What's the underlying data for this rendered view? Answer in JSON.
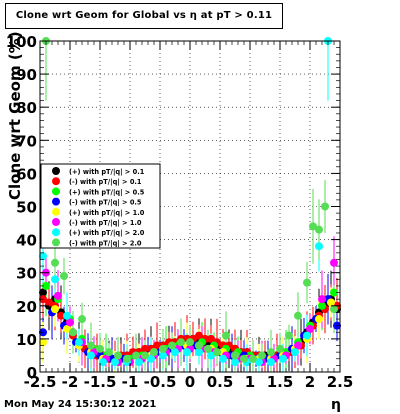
{
  "chart_data": {
    "type": "scatter",
    "title": "Clone wrt Geom for Global vs   η at pT > 0.11",
    "xlabel": "η",
    "ylabel": "Clone wrt Geom (%)",
    "xlim": [
      -2.5,
      2.5
    ],
    "ylim": [
      0,
      100
    ],
    "x_ticks": [
      "-2.5",
      "-2",
      "-1.5",
      "-1",
      "-0.5",
      "0",
      "0.5",
      "1",
      "1.5",
      "2",
      "2.5"
    ],
    "y_ticks": [
      "0",
      "10",
      "20",
      "30",
      "40",
      "50",
      "60",
      "70",
      "80",
      "90",
      "100"
    ],
    "grid": true,
    "legend_position": "left",
    "series": [
      {
        "name": "(+) with pT/|q| > 0.1",
        "color": "#000000",
        "marker": "circle",
        "x": [
          -2.45,
          -2.35,
          -2.25,
          -2.15,
          -2.05,
          -1.95,
          -1.85,
          -1.75,
          -1.65,
          -1.55,
          -1.45,
          -1.35,
          -1.25,
          -1.15,
          -1.05,
          -0.95,
          -0.85,
          -0.75,
          -0.65,
          -0.55,
          -0.45,
          -0.35,
          -0.25,
          -0.15,
          -0.05,
          0.05,
          0.15,
          0.25,
          0.35,
          0.45,
          0.55,
          0.65,
          0.75,
          0.85,
          0.95,
          1.05,
          1.15,
          1.25,
          1.35,
          1.45,
          1.55,
          1.65,
          1.75,
          1.85,
          1.95,
          2.05,
          2.15,
          2.25,
          2.35,
          2.45
        ],
        "y": [
          24,
          20,
          22,
          18,
          15,
          12,
          9,
          7,
          6,
          5,
          5,
          4,
          4,
          4,
          5,
          5,
          6,
          6,
          7,
          7,
          8,
          8,
          9,
          9,
          10,
          10,
          10,
          9,
          9,
          8,
          8,
          7,
          7,
          6,
          6,
          5,
          5,
          5,
          4,
          5,
          5,
          6,
          7,
          9,
          12,
          15,
          18,
          20,
          22,
          19
        ]
      },
      {
        "name": "(-) with pT/|q| > 0.1",
        "color": "#ff0000",
        "marker": "circle",
        "x": [
          -2.45,
          -2.35,
          -2.25,
          -2.15,
          -2.05,
          -1.95,
          -1.85,
          -1.75,
          -1.65,
          -1.55,
          -1.45,
          -1.35,
          -1.25,
          -1.15,
          -1.05,
          -0.95,
          -0.85,
          -0.75,
          -0.65,
          -0.55,
          -0.45,
          -0.35,
          -0.25,
          -0.15,
          -0.05,
          0.05,
          0.15,
          0.25,
          0.35,
          0.45,
          0.55,
          0.65,
          0.75,
          0.85,
          0.95,
          1.05,
          1.15,
          1.25,
          1.35,
          1.45,
          1.55,
          1.65,
          1.75,
          1.85,
          1.95,
          2.05,
          2.15,
          2.25,
          2.35,
          2.45
        ],
        "y": [
          22,
          21,
          20,
          17,
          14,
          11,
          8,
          7,
          6,
          5,
          5,
          4,
          4,
          5,
          5,
          6,
          6,
          7,
          7,
          8,
          8,
          9,
          9,
          10,
          10,
          10,
          11,
          10,
          10,
          9,
          8,
          8,
          7,
          6,
          6,
          5,
          5,
          4,
          4,
          5,
          5,
          6,
          7,
          8,
          11,
          14,
          17,
          19,
          21,
          20
        ]
      },
      {
        "name": "(+) with pT/|q| > 0.5",
        "color": "#00ff00",
        "marker": "circle",
        "x": [
          -2.4,
          -2.2,
          -2.0,
          -1.8,
          -1.6,
          -1.4,
          -1.2,
          -1.0,
          -0.8,
          -0.6,
          -0.4,
          -0.2,
          0.0,
          0.2,
          0.4,
          0.6,
          0.8,
          1.0,
          1.2,
          1.4,
          1.6,
          1.8,
          2.0,
          2.2,
          2.4
        ],
        "y": [
          26,
          22,
          16,
          10,
          7,
          5,
          4,
          4,
          5,
          6,
          7,
          8,
          9,
          9,
          8,
          7,
          6,
          5,
          4,
          4,
          6,
          9,
          14,
          20,
          24
        ]
      },
      {
        "name": "(-) with pT/|q| > 0.5",
        "color": "#0000ff",
        "marker": "circle",
        "x": [
          -2.45,
          -2.3,
          -2.1,
          -1.9,
          -1.7,
          -1.5,
          -1.3,
          -1.1,
          -0.9,
          -0.7,
          -0.5,
          -0.3,
          -0.1,
          0.1,
          0.3,
          0.5,
          0.7,
          0.9,
          1.1,
          1.3,
          1.5,
          1.7,
          1.9,
          2.1,
          2.3,
          2.45
        ],
        "y": [
          12,
          18,
          14,
          9,
          6,
          5,
          4,
          4,
          5,
          5,
          6,
          7,
          8,
          8,
          7,
          6,
          5,
          5,
          4,
          4,
          5,
          7,
          11,
          16,
          22,
          14
        ]
      },
      {
        "name": "(+) with pT/|q| > 1.0",
        "color": "#ffff00",
        "marker": "circle",
        "x": [
          -2.45,
          -2.25,
          -2.05,
          -1.85,
          -1.65,
          -1.45,
          -1.25,
          -1.05,
          -0.85,
          -0.65,
          -0.45,
          -0.25,
          -0.05,
          0.15,
          0.35,
          0.55,
          0.75,
          0.95,
          1.15,
          1.35,
          1.55,
          1.75,
          1.95,
          2.15,
          2.35
        ],
        "y": [
          9,
          19,
          13,
          8,
          6,
          4,
          3,
          3,
          4,
          5,
          6,
          7,
          8,
          8,
          7,
          6,
          5,
          4,
          4,
          4,
          5,
          7,
          10,
          16,
          21
        ]
      },
      {
        "name": "(-) with pT/|q| > 1.0",
        "color": "#ff00ff",
        "marker": "circle",
        "x": [
          -2.4,
          -2.2,
          -2.0,
          -1.8,
          -1.6,
          -1.4,
          -1.2,
          -1.0,
          -0.8,
          -0.6,
          -0.4,
          -0.2,
          0.0,
          0.2,
          0.4,
          0.6,
          0.8,
          1.0,
          1.2,
          1.4,
          1.6,
          1.8,
          2.0,
          2.2,
          2.4
        ],
        "y": [
          30,
          23,
          15,
          9,
          6,
          4,
          3,
          3,
          4,
          5,
          6,
          7,
          7,
          7,
          6,
          5,
          4,
          4,
          3,
          4,
          5,
          8,
          13,
          22,
          33
        ]
      },
      {
        "name": "(+) with pT/|q| > 2.0",
        "color": "#00ffff",
        "marker": "circle",
        "x": [
          -2.45,
          -2.25,
          -2.05,
          -1.85,
          -1.65,
          -1.45,
          -1.25,
          -1.05,
          -0.85,
          -0.65,
          -0.45,
          -0.25,
          -0.05,
          0.15,
          0.35,
          0.55,
          0.75,
          0.95,
          1.15,
          1.35,
          1.55,
          1.75,
          1.95,
          2.15,
          2.3
        ],
        "y": [
          35,
          28,
          17,
          9,
          5,
          3,
          3,
          3,
          3,
          4,
          5,
          6,
          6,
          6,
          5,
          4,
          3,
          3,
          3,
          3,
          4,
          6,
          11,
          38,
          100
        ]
      },
      {
        "name": "(-) with pT/|q| > 2.0",
        "color": "#55dd55",
        "marker": "circle",
        "x": [
          -2.4,
          -2.25,
          -2.1,
          -1.95,
          -1.8,
          -1.65,
          -1.5,
          -1.35,
          -1.2,
          -1.05,
          -0.9,
          -0.75,
          -0.6,
          -0.45,
          -0.3,
          -0.15,
          0.0,
          0.15,
          0.3,
          0.45,
          0.6,
          0.75,
          0.9,
          1.05,
          1.2,
          1.35,
          1.5,
          1.65,
          1.8,
          1.95,
          2.05,
          2.15,
          2.25,
          2.4
        ],
        "y": [
          100,
          33,
          29,
          12,
          16,
          8,
          7,
          6,
          5,
          4,
          5,
          5,
          6,
          7,
          8,
          9,
          9,
          8,
          7,
          6,
          11,
          5,
          4,
          4,
          5,
          6,
          7,
          11,
          17,
          27,
          44,
          43,
          50,
          19
        ]
      }
    ]
  },
  "footer": {
    "timestamp": "Mon May 24 15:30:12 2021"
  }
}
